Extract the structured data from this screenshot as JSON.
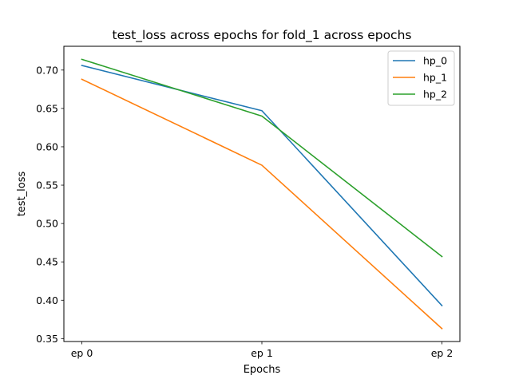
{
  "chart_data": {
    "type": "line",
    "title": "test_loss across epochs for fold_1 across epochs",
    "xlabel": "Epochs",
    "ylabel": "test_loss",
    "categories": [
      "ep 0",
      "ep 1",
      "ep 2"
    ],
    "ylim": [
      0.3462,
      0.731
    ],
    "yticks": [
      0.35,
      0.4,
      0.45,
      0.5,
      0.55,
      0.6,
      0.65,
      0.7
    ],
    "ytick_labels": [
      "0.35",
      "0.40",
      "0.45",
      "0.50",
      "0.55",
      "0.60",
      "0.65",
      "0.70"
    ],
    "grid": false,
    "legend_position": "top-right",
    "series": [
      {
        "name": "hp_0",
        "color": "#1f77b4",
        "values": [
          0.706,
          0.647,
          0.393
        ]
      },
      {
        "name": "hp_1",
        "color": "#ff7f0e",
        "values": [
          0.688,
          0.576,
          0.363
        ]
      },
      {
        "name": "hp_2",
        "color": "#2ca02c",
        "values": [
          0.714,
          0.64,
          0.457
        ]
      }
    ]
  }
}
